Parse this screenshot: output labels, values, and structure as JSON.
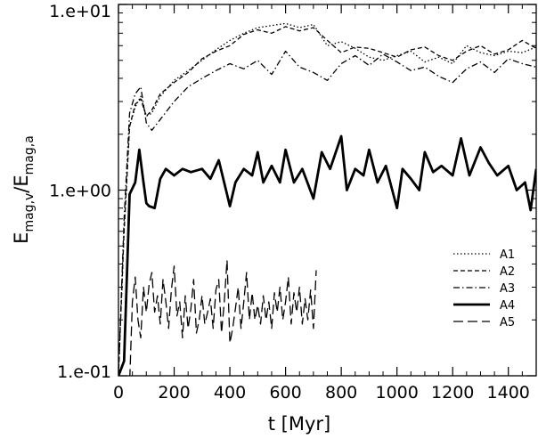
{
  "chart_data": {
    "type": "line",
    "ylabel": "E_mag,v / E_mag,a",
    "ylabel_parts": {
      "base1": "E",
      "sub1": "mag,v",
      "slash": "/",
      "base2": "E",
      "sub2": "mag,a"
    },
    "xlabel": "t [Myr]",
    "xlim": [
      0,
      1500
    ],
    "ylim": [
      0.1,
      10
    ],
    "yscale": "log",
    "xticks": [
      0,
      200,
      400,
      600,
      800,
      1000,
      1200,
      1400
    ],
    "xtick_labels": [
      "0",
      "200",
      "400",
      "600",
      "800",
      "1000",
      "1200",
      "1400"
    ],
    "yticks": [
      0.1,
      1,
      10
    ],
    "ytick_labels": [
      "1.e-01",
      "1.e+00",
      "1.e+01"
    ],
    "grid": false,
    "legend_position": "lower-right",
    "series": [
      {
        "name": "A1",
        "style": "dotted",
        "width": 1.3,
        "x": [
          0,
          20,
          40,
          60,
          80,
          100,
          120,
          150,
          200,
          250,
          300,
          350,
          400,
          450,
          500,
          550,
          600,
          650,
          700,
          750,
          800,
          850,
          900,
          950,
          1000,
          1050,
          1100,
          1150,
          1200,
          1250,
          1300,
          1350,
          1400,
          1450,
          1500
        ],
        "y": [
          0.1,
          0.6,
          2.2,
          2.8,
          3.2,
          2.5,
          2.6,
          3.2,
          3.9,
          4.4,
          5.0,
          5.7,
          6.4,
          7.0,
          7.5,
          7.7,
          7.9,
          7.5,
          7.8,
          6.0,
          6.3,
          5.8,
          5.2,
          5.0,
          5.3,
          5.6,
          4.9,
          5.2,
          4.8,
          6.0,
          5.5,
          5.3,
          5.6,
          5.5,
          5.9
        ]
      },
      {
        "name": "A2",
        "style": "dashed",
        "width": 1.3,
        "x": [
          0,
          20,
          40,
          60,
          80,
          100,
          120,
          150,
          200,
          250,
          300,
          350,
          400,
          450,
          500,
          550,
          600,
          650,
          700,
          750,
          800,
          850,
          900,
          950,
          1000,
          1050,
          1100,
          1150,
          1200,
          1250,
          1300,
          1350,
          1400,
          1450,
          1500
        ],
        "y": [
          0.1,
          0.6,
          2.2,
          2.9,
          3.1,
          2.5,
          2.7,
          3.3,
          3.8,
          4.3,
          5.1,
          5.6,
          6.0,
          6.9,
          7.3,
          7.0,
          7.6,
          7.2,
          7.5,
          6.4,
          5.5,
          5.9,
          5.8,
          5.5,
          5.2,
          5.7,
          5.9,
          5.3,
          5.0,
          5.6,
          6.0,
          5.4,
          5.7,
          6.4,
          5.8
        ]
      },
      {
        "name": "A3",
        "style": "dashdot",
        "width": 1.3,
        "x": [
          0,
          20,
          40,
          60,
          80,
          100,
          120,
          150,
          200,
          250,
          300,
          350,
          400,
          450,
          500,
          550,
          600,
          650,
          700,
          750,
          800,
          850,
          900,
          950,
          1000,
          1050,
          1100,
          1150,
          1200,
          1250,
          1300,
          1350,
          1400,
          1450,
          1500
        ],
        "y": [
          0.1,
          0.7,
          2.6,
          3.3,
          3.6,
          2.3,
          2.1,
          2.4,
          3.0,
          3.6,
          4.0,
          4.4,
          4.8,
          4.5,
          5.0,
          4.2,
          5.6,
          4.6,
          4.3,
          3.9,
          4.8,
          5.3,
          4.7,
          5.4,
          4.9,
          4.4,
          4.6,
          4.1,
          3.8,
          4.5,
          4.9,
          4.3,
          5.1,
          4.8,
          4.6
        ]
      },
      {
        "name": "A4",
        "style": "solid",
        "width": 2.8,
        "x": [
          0,
          20,
          40,
          60,
          75,
          90,
          100,
          110,
          130,
          150,
          170,
          200,
          230,
          260,
          300,
          330,
          360,
          400,
          420,
          450,
          480,
          500,
          520,
          550,
          580,
          600,
          630,
          660,
          700,
          730,
          760,
          800,
          820,
          850,
          880,
          900,
          930,
          960,
          1000,
          1020,
          1050,
          1080,
          1100,
          1130,
          1160,
          1200,
          1230,
          1260,
          1300,
          1330,
          1360,
          1400,
          1430,
          1460,
          1480,
          1500
        ],
        "y": [
          0.1,
          0.12,
          0.95,
          1.1,
          1.65,
          1.1,
          0.85,
          0.82,
          0.8,
          1.15,
          1.3,
          1.2,
          1.3,
          1.25,
          1.3,
          1.15,
          1.45,
          0.82,
          1.1,
          1.3,
          1.2,
          1.6,
          1.1,
          1.35,
          1.1,
          1.65,
          1.1,
          1.3,
          0.9,
          1.6,
          1.3,
          1.95,
          1.0,
          1.3,
          1.2,
          1.65,
          1.1,
          1.35,
          0.8,
          1.3,
          1.15,
          1.0,
          1.6,
          1.25,
          1.35,
          1.2,
          1.9,
          1.2,
          1.7,
          1.4,
          1.2,
          1.35,
          1.0,
          1.1,
          0.78,
          1.3
        ]
      },
      {
        "name": "A5",
        "style": "longdash",
        "width": 1.3,
        "x": [
          30,
          40,
          50,
          60,
          70,
          80,
          90,
          100,
          110,
          120,
          130,
          140,
          150,
          160,
          170,
          180,
          190,
          200,
          210,
          220,
          230,
          240,
          250,
          260,
          270,
          280,
          290,
          300,
          310,
          320,
          330,
          340,
          350,
          360,
          370,
          380,
          390,
          400,
          410,
          420,
          430,
          440,
          450,
          460,
          470,
          480,
          490,
          500,
          510,
          520,
          530,
          540,
          550,
          560,
          570,
          580,
          590,
          600,
          610,
          620,
          630,
          640,
          650,
          660,
          670,
          680,
          690,
          700,
          710
        ],
        "y": [
          0.1,
          0.09,
          0.25,
          0.34,
          0.2,
          0.16,
          0.3,
          0.22,
          0.31,
          0.36,
          0.22,
          0.27,
          0.19,
          0.33,
          0.25,
          0.18,
          0.29,
          0.39,
          0.21,
          0.25,
          0.16,
          0.27,
          0.18,
          0.23,
          0.33,
          0.17,
          0.2,
          0.27,
          0.19,
          0.22,
          0.26,
          0.18,
          0.29,
          0.33,
          0.17,
          0.25,
          0.42,
          0.15,
          0.18,
          0.23,
          0.3,
          0.18,
          0.25,
          0.36,
          0.2,
          0.28,
          0.2,
          0.24,
          0.19,
          0.27,
          0.2,
          0.25,
          0.18,
          0.28,
          0.22,
          0.3,
          0.2,
          0.25,
          0.34,
          0.19,
          0.28,
          0.22,
          0.3,
          0.19,
          0.26,
          0.2,
          0.29,
          0.18,
          0.37
        ]
      }
    ]
  }
}
